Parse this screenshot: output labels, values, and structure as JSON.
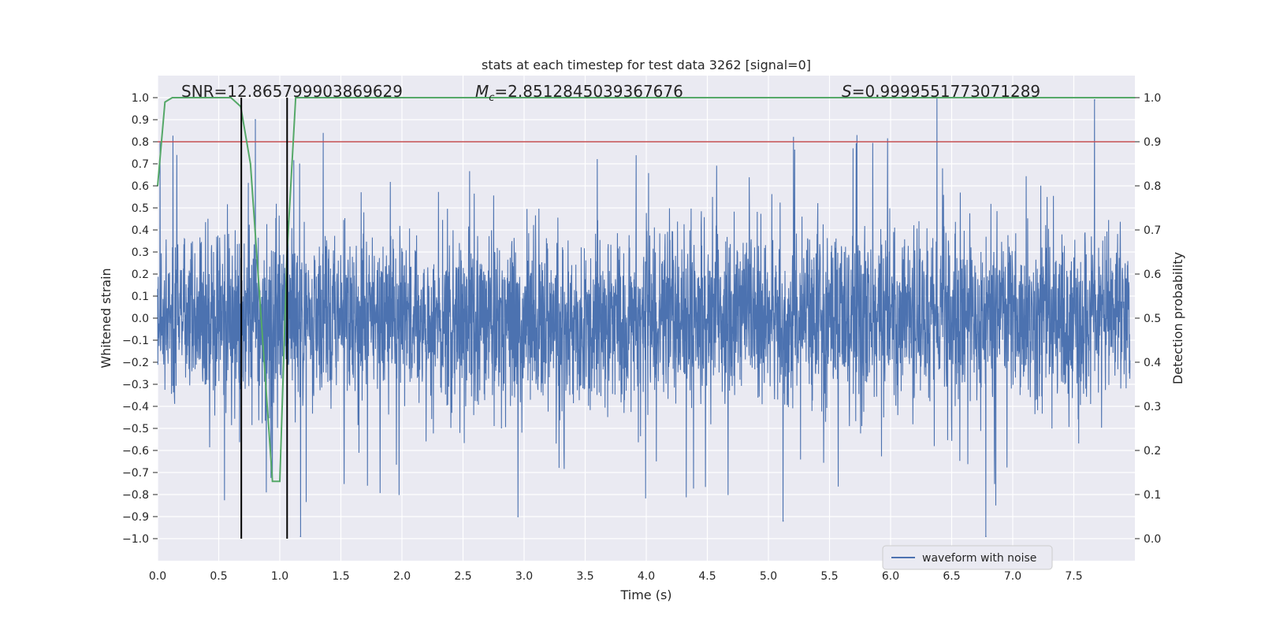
{
  "chart_data": {
    "type": "line",
    "title": "stats at each timestep for test data 3262 [signal=0]",
    "xlabel": "Time (s)",
    "ylabel": "Whitened strain",
    "ylabel_right": "Detection probability",
    "xlim": [
      0.0,
      8.0
    ],
    "ylim": [
      -1.1,
      1.1
    ],
    "ylim_right": [
      -0.05,
      1.05
    ],
    "x_ticks": [
      0.0,
      0.5,
      1.0,
      1.5,
      2.0,
      2.5,
      3.0,
      3.5,
      4.0,
      4.5,
      5.0,
      5.5,
      6.0,
      6.5,
      7.0,
      7.5
    ],
    "x_tick_labels": [
      "0.0",
      "0.5",
      "1.0",
      "1.5",
      "2.0",
      "2.5",
      "3.0",
      "3.5",
      "4.0",
      "4.5",
      "5.0",
      "5.5",
      "6.0",
      "6.5",
      "7.0",
      "7.5"
    ],
    "y_ticks": [
      1.0,
      0.9,
      0.8,
      0.7,
      0.6,
      0.5,
      0.4,
      0.3,
      0.2,
      0.1,
      0.0,
      -0.1,
      -0.2,
      -0.3,
      -0.4,
      -0.5,
      -0.6,
      -0.7,
      -0.8,
      -0.9,
      -1.0
    ],
    "y_tick_labels": [
      "1.0",
      "0.9",
      "0.8",
      "0.7",
      "0.6",
      "0.5",
      "0.4",
      "0.3",
      "0.2",
      "0.1",
      "0.0",
      "−0.1",
      "−0.2",
      "−0.3",
      "−0.4",
      "−0.5",
      "−0.6",
      "−0.7",
      "−0.8",
      "−0.9",
      "−1.0"
    ],
    "y_right_ticks": [
      1.0,
      0.9,
      0.8,
      0.7,
      0.6,
      0.5,
      0.4,
      0.3,
      0.2,
      0.1,
      0.0
    ],
    "y_right_tick_labels": [
      "1.0",
      "0.9",
      "0.8",
      "0.7",
      "0.6",
      "0.5",
      "0.4",
      "0.3",
      "0.2",
      "0.1",
      "0.0"
    ],
    "annotations": {
      "snr": "SNR=12.865799903869629",
      "mc_symbol": "M",
      "mc_sub": "c",
      "mc_value": "=2.8512845039367676",
      "s_symbol": "S",
      "s_value": "=0.9999551773071289"
    },
    "series": [
      {
        "name": "waveform with noise",
        "axis": "left",
        "color": "#4c72b0",
        "description": "dense noise trace, mostly within ±0.4, spikes to ±1.0",
        "notable_peaks": [
          {
            "x": 0.02,
            "y": 0.8
          },
          {
            "x": 0.8,
            "y": 0.9
          },
          {
            "x": 1.17,
            "y": -0.99
          },
          {
            "x": 2.95,
            "y": -0.9
          },
          {
            "x": 5.12,
            "y": -0.92
          },
          {
            "x": 6.38,
            "y": 1.0
          },
          {
            "x": 6.78,
            "y": -0.99
          },
          {
            "x": 7.67,
            "y": 0.99
          }
        ]
      },
      {
        "name": "detection probability",
        "axis": "right",
        "color": "#55a868",
        "x": [
          0.0,
          0.06,
          0.12,
          0.6,
          0.68,
          0.76,
          0.94,
          1.0,
          1.06,
          1.13,
          8.0
        ],
        "y": [
          0.8,
          0.99,
          1.0,
          1.0,
          0.98,
          0.85,
          0.13,
          0.13,
          0.65,
          1.0,
          1.0
        ]
      }
    ],
    "threshold": {
      "axis": "right",
      "value": 0.9,
      "color": "#c44e52"
    },
    "vertical_lines": [
      {
        "x": 0.685,
        "color": "#000000"
      },
      {
        "x": 1.06,
        "color": "#000000"
      }
    ],
    "legend": {
      "entries": [
        "waveform with noise"
      ],
      "placement": "lower-right"
    },
    "grid": true,
    "background": "#eaeaf2"
  }
}
